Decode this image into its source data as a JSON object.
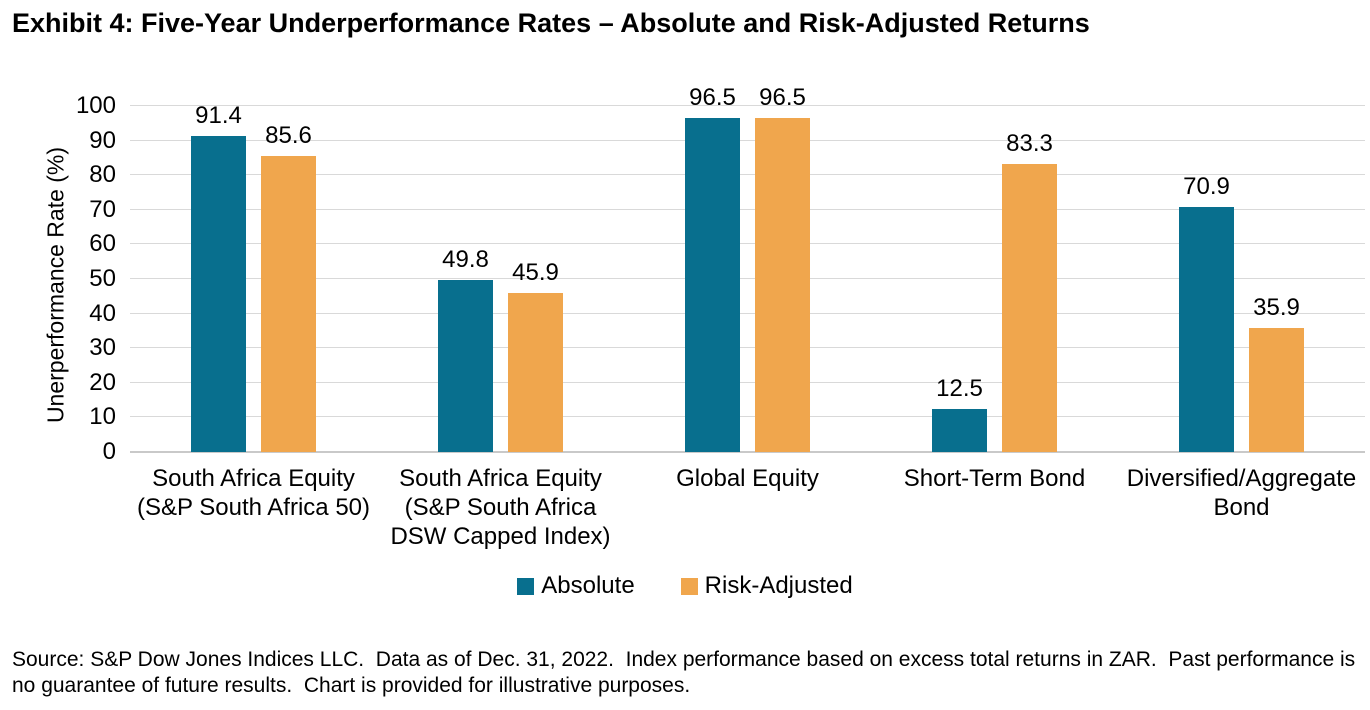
{
  "title": "Exhibit 4: Five-Year Underperformance Rates – Absolute and Risk-Adjusted Returns",
  "source": "Source: S&P Dow Jones Indices LLC.  Data as of Dec. 31, 2022.  Index performance based on excess total returns in ZAR.  Past performance is no guarantee of future results.  Chart is provided for illustrative purposes.",
  "colors": {
    "absolute": "#086F8E",
    "risk_adjusted": "#F0A64D",
    "gridline": "#D9D9D9",
    "baseline": "#C9C9C9"
  },
  "chart_data": {
    "type": "bar",
    "title": "Exhibit 4: Five-Year Underperformance Rates – Absolute and Risk-Adjusted Returns",
    "xlabel": "",
    "ylabel": "Unerperformance Rate (%)",
    "ylim": [
      0,
      100
    ],
    "ytick_step": 10,
    "grid": true,
    "value_labels": true,
    "legend_position": "bottom",
    "categories": [
      "South Africa Equity (S&P South Africa 50)",
      "South Africa Equity (S&P South Africa DSW Capped Index)",
      "Global Equity",
      "Short-Term Bond",
      "Diversified/Aggregate Bond"
    ],
    "series": [
      {
        "name": "Absolute",
        "color": "#086F8E",
        "values": [
          91.4,
          49.8,
          96.5,
          12.5,
          70.9
        ]
      },
      {
        "name": "Risk-Adjusted",
        "color": "#F0A64D",
        "values": [
          85.6,
          45.9,
          96.5,
          83.3,
          35.9
        ]
      }
    ]
  }
}
